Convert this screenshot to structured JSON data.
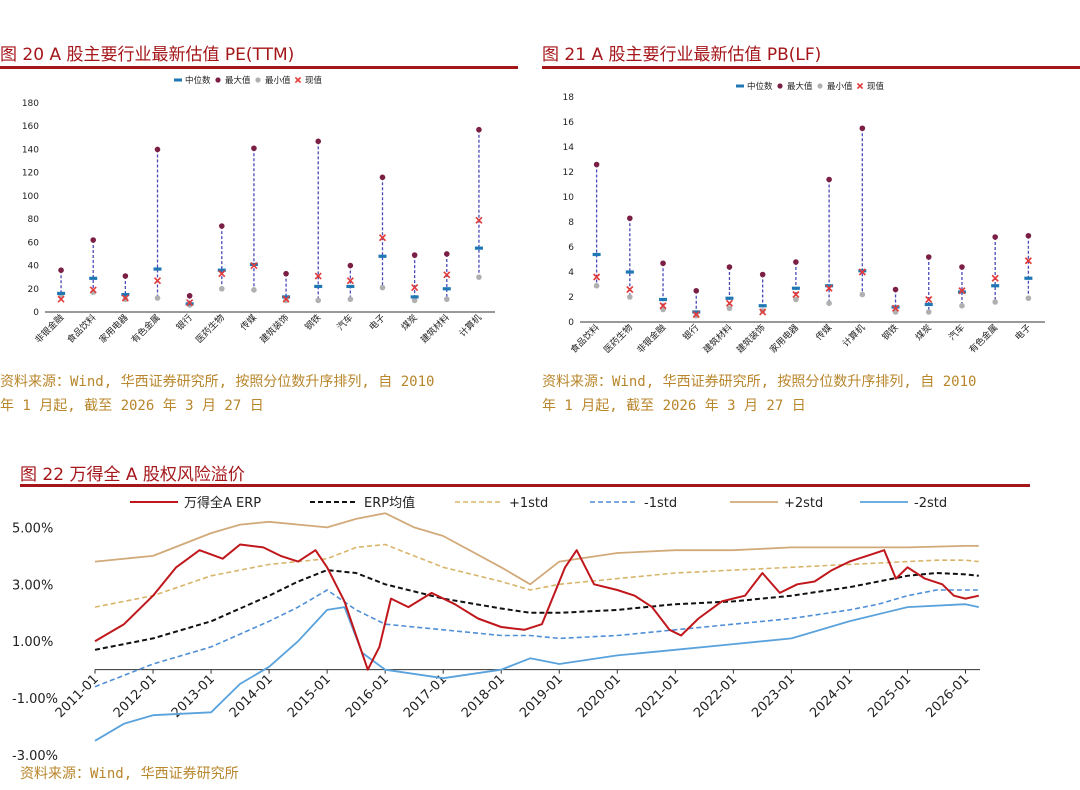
{
  "figures": {
    "pe": {
      "title": "图 20 A 股主要行业最新估值 PE(TTM)",
      "source_line1": "资料来源：Wind, 华西证券研究所, 按照分位数升序排列, 自 2010",
      "source_line2": "年 1 月起, 截至 2026 年 3 月 27 日"
    },
    "pb": {
      "title": "图 21 A 股主要行业最新估值 PB(LF)",
      "source_line1": "资料来源：Wind, 华西证券研究所, 按照分位数升序排列, 自 2010",
      "source_line2": "年 1 月起, 截至 2026 年 3 月 27 日"
    },
    "erp": {
      "title": "图 22 万得全 A 股权风险溢价",
      "source": "资料来源：Wind, 华西证券研究所"
    }
  },
  "colors": {
    "accent": "#a4161a",
    "source_text": "#b8862b",
    "median": "#1f78b4",
    "max": "#7b1f45",
    "min": "#b0b0b0",
    "current": "#e23b3b",
    "range_line": "#4a4ab8",
    "erp": "#c0171c",
    "erp_mean": "#111111",
    "plus1": "#d8b56a",
    "minus1": "#4f8fd6",
    "plus2": "#d2aa7a",
    "minus2": "#5aa2dc"
  },
  "chart_data": [
    {
      "type": "scatter",
      "subtype": "range-dot",
      "legend": [
        "中位数",
        "最大值",
        "最小值",
        "现值"
      ],
      "legend_position": "top",
      "categories": [
        "非银金融",
        "食品饮料",
        "家用电器",
        "有色金属",
        "银行",
        "医药生物",
        "传媒",
        "建筑装饰",
        "钢铁",
        "汽车",
        "电子",
        "煤炭",
        "建筑材料",
        "计算机"
      ],
      "yticks": [
        "0",
        "20",
        "40",
        "60",
        "80",
        "100",
        "120",
        "140",
        "160",
        "180"
      ],
      "ylim": [
        0,
        180
      ],
      "median": [
        16,
        29,
        15,
        37,
        7,
        36,
        41,
        13,
        22,
        22,
        48,
        13,
        20,
        55
      ],
      "max": [
        36,
        62,
        31,
        140,
        14,
        74,
        141,
        33,
        147,
        40,
        116,
        49,
        50,
        157
      ],
      "min": [
        14,
        17,
        11,
        12,
        6,
        20,
        19,
        10,
        10,
        11,
        21,
        10,
        11,
        30
      ],
      "current": [
        11,
        19,
        12,
        27,
        8,
        33,
        40,
        11,
        31,
        27,
        64,
        21,
        32,
        79
      ]
    },
    {
      "type": "scatter",
      "subtype": "range-dot",
      "legend": [
        "中位数",
        "最大值",
        "最小值",
        "现值"
      ],
      "legend_position": "top",
      "categories": [
        "食品饮料",
        "医药生物",
        "非银金融",
        "银行",
        "建筑材料",
        "建筑装饰",
        "家用电器",
        "传媒",
        "计算机",
        "钢铁",
        "煤炭",
        "汽车",
        "有色金属",
        "电子"
      ],
      "yticks": [
        "0",
        "2",
        "4",
        "6",
        "8",
        "10",
        "12",
        "14",
        "16",
        "18"
      ],
      "ylim": [
        0,
        18
      ],
      "median": [
        5.4,
        4.0,
        1.8,
        0.8,
        1.9,
        1.3,
        2.7,
        2.9,
        4.1,
        1.2,
        1.4,
        2.4,
        2.9,
        3.5
      ],
      "max": [
        12.6,
        8.3,
        4.7,
        2.5,
        4.4,
        3.8,
        4.8,
        11.4,
        15.5,
        2.6,
        5.2,
        4.4,
        6.8,
        6.9
      ],
      "min": [
        2.9,
        2.0,
        1.0,
        0.5,
        1.1,
        0.9,
        1.8,
        1.5,
        2.2,
        0.8,
        0.8,
        1.3,
        1.6,
        1.9
      ],
      "current": [
        3.6,
        2.6,
        1.3,
        0.6,
        1.5,
        0.8,
        2.2,
        2.7,
        4.0,
        1.1,
        1.8,
        2.5,
        3.5,
        4.9
      ]
    },
    {
      "type": "line",
      "legend": [
        "万得全A ERP",
        "ERP均值",
        "+1std",
        "-1std",
        "+2std",
        "-2std"
      ],
      "legend_position": "top",
      "ytick_labels": [
        "5.00%",
        "3.00%",
        "1.00%",
        "-1.00%",
        "-3.00%"
      ],
      "ylim": [
        -3,
        6
      ],
      "xtick_labels": [
        "2011-01",
        "2012-01",
        "2013-01",
        "2014-01",
        "2015-01",
        "2016-01",
        "2017-01",
        "2018-01",
        "2019-01",
        "2020-01",
        "2021-01",
        "2022-01",
        "2023-01",
        "2024-01",
        "2025-01",
        "2026-01"
      ],
      "x_range": [
        "2011-01",
        "2026-03"
      ],
      "series": [
        {
          "name": "万得全A ERP",
          "x": [
            2011.0,
            2011.5,
            2012.0,
            2012.4,
            2012.8,
            2013.2,
            2013.5,
            2013.9,
            2014.2,
            2014.5,
            2014.8,
            2015.0,
            2015.3,
            2015.5,
            2015.7,
            2015.9,
            2016.1,
            2016.4,
            2016.8,
            2017.2,
            2017.6,
            2018.0,
            2018.4,
            2018.7,
            2018.9,
            2019.1,
            2019.3,
            2019.6,
            2020.0,
            2020.3,
            2020.6,
            2020.9,
            2021.1,
            2021.4,
            2021.8,
            2022.2,
            2022.5,
            2022.8,
            2023.1,
            2023.4,
            2023.7,
            2024.0,
            2024.3,
            2024.6,
            2024.8,
            2025.0,
            2025.3,
            2025.6,
            2025.8,
            2026.0,
            2026.23
          ],
          "y": [
            1.0,
            1.6,
            2.6,
            3.6,
            4.2,
            3.9,
            4.4,
            4.3,
            4.0,
            3.8,
            4.2,
            3.6,
            2.4,
            1.2,
            0.0,
            0.8,
            2.5,
            2.2,
            2.7,
            2.3,
            1.8,
            1.5,
            1.4,
            1.6,
            2.6,
            3.6,
            4.2,
            3.0,
            2.8,
            2.6,
            2.2,
            1.4,
            1.2,
            1.8,
            2.4,
            2.6,
            3.4,
            2.7,
            3.0,
            3.1,
            3.5,
            3.8,
            4.0,
            4.2,
            3.2,
            3.6,
            3.2,
            3.0,
            2.6,
            2.5,
            2.6
          ]
        },
        {
          "name": "ERP均值",
          "x": [
            2011.0,
            2012.0,
            2013.0,
            2014.0,
            2014.5,
            2015.0,
            2015.5,
            2016.0,
            2017.0,
            2018.0,
            2018.5,
            2019.0,
            2020.0,
            2021.0,
            2022.0,
            2023.0,
            2024.0,
            2024.5,
            2025.0,
            2025.5,
            2026.0,
            2026.23
          ],
          "y": [
            0.7,
            1.1,
            1.7,
            2.6,
            3.1,
            3.5,
            3.4,
            3.0,
            2.5,
            2.15,
            2.0,
            2.0,
            2.1,
            2.3,
            2.4,
            2.6,
            2.9,
            3.1,
            3.3,
            3.4,
            3.35,
            3.3
          ]
        },
        {
          "name": "+1std",
          "x": [
            2011.0,
            2012.0,
            2013.0,
            2014.0,
            2014.5,
            2015.0,
            2015.5,
            2016.0,
            2017.0,
            2018.0,
            2018.5,
            2019.0,
            2020.0,
            2021.0,
            2022.0,
            2023.0,
            2024.0,
            2024.5,
            2025.0,
            2025.5,
            2026.0,
            2026.23
          ],
          "y": [
            2.2,
            2.6,
            3.3,
            3.7,
            3.8,
            3.9,
            4.3,
            4.4,
            3.6,
            3.1,
            2.8,
            3.0,
            3.2,
            3.4,
            3.5,
            3.6,
            3.7,
            3.75,
            3.8,
            3.85,
            3.85,
            3.8
          ]
        },
        {
          "name": "-1std",
          "x": [
            2011.0,
            2012.0,
            2013.0,
            2014.0,
            2014.5,
            2015.0,
            2015.5,
            2016.0,
            2017.0,
            2018.0,
            2018.5,
            2019.0,
            2020.0,
            2021.0,
            2022.0,
            2023.0,
            2024.0,
            2024.5,
            2025.0,
            2025.5,
            2026.0,
            2026.23
          ],
          "y": [
            -0.6,
            0.2,
            0.8,
            1.7,
            2.2,
            2.8,
            2.1,
            1.6,
            1.4,
            1.2,
            1.2,
            1.1,
            1.2,
            1.4,
            1.6,
            1.8,
            2.1,
            2.3,
            2.6,
            2.8,
            2.8,
            2.8
          ]
        },
        {
          "name": "+2std",
          "x": [
            2011.0,
            2012.0,
            2013.0,
            2013.5,
            2014.0,
            2015.0,
            2015.5,
            2016.0,
            2016.5,
            2017.0,
            2018.0,
            2018.5,
            2019.0,
            2020.0,
            2021.0,
            2022.0,
            2023.0,
            2024.0,
            2025.0,
            2026.0,
            2026.23
          ],
          "y": [
            3.8,
            4.0,
            4.8,
            5.1,
            5.2,
            5.0,
            5.3,
            5.5,
            5.0,
            4.7,
            3.6,
            3.0,
            3.8,
            4.1,
            4.2,
            4.2,
            4.3,
            4.3,
            4.3,
            4.35,
            4.35
          ]
        },
        {
          "name": "-2std",
          "x": [
            2011.0,
            2011.5,
            2012.0,
            2013.0,
            2013.5,
            2014.0,
            2014.5,
            2015.0,
            2015.3,
            2015.6,
            2016.0,
            2017.0,
            2018.0,
            2018.5,
            2019.0,
            2020.0,
            2021.0,
            2022.0,
            2023.0,
            2024.0,
            2025.0,
            2026.0,
            2026.23
          ],
          "y": [
            -2.5,
            -1.9,
            -1.6,
            -1.5,
            -0.5,
            0.1,
            1.0,
            2.1,
            2.2,
            0.6,
            0.0,
            -0.3,
            0.0,
            0.4,
            0.2,
            0.5,
            0.7,
            0.9,
            1.1,
            1.7,
            2.2,
            2.3,
            2.2
          ]
        }
      ]
    }
  ]
}
